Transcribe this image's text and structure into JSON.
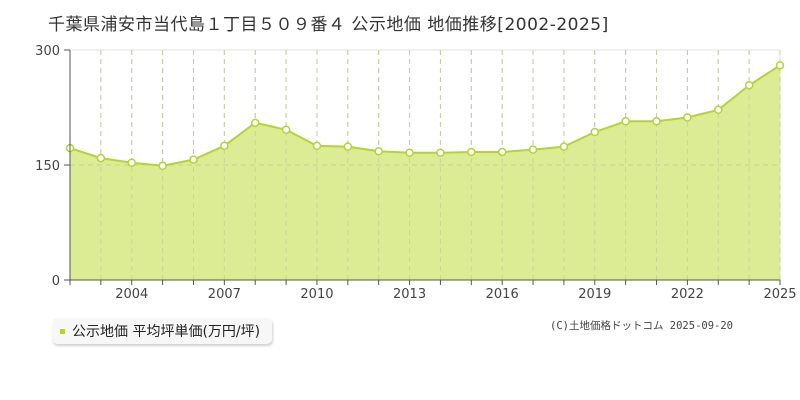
{
  "title": "千葉県浦安市当代島１丁目５０９番４ 公示地価 地価推移[2002-2025]",
  "legend": {
    "label": "公示地価 平均坪単価(万円/坪)",
    "color": "#b5d334"
  },
  "credit": "(C)土地価格ドットコム 2025-09-20",
  "colors": {
    "fill": "#dcec94",
    "line": "#b5d334",
    "grid": "#c8c8c8",
    "axis": "#555555"
  },
  "chart_data": {
    "type": "area",
    "title": "千葉県浦安市当代島１丁目５０９番４ 公示地価 地価推移[2002-2025]",
    "xlabel": "",
    "ylabel": "",
    "ylim": [
      0,
      300
    ],
    "xlim": [
      2002,
      2025
    ],
    "yticks": [
      0,
      150,
      300
    ],
    "xticks": [
      2004,
      2007,
      2010,
      2013,
      2016,
      2019,
      2022,
      2025
    ],
    "grid": true,
    "legend_position": "bottom-left",
    "x": [
      2002,
      2003,
      2004,
      2005,
      2006,
      2007,
      2008,
      2009,
      2010,
      2011,
      2012,
      2013,
      2014,
      2015,
      2016,
      2017,
      2018,
      2019,
      2020,
      2021,
      2022,
      2023,
      2024,
      2025
    ],
    "series": [
      {
        "name": "公示地価 平均坪単価(万円/坪)",
        "values": [
          172,
          159,
          153,
          149,
          157,
          175,
          205,
          196,
          175,
          174,
          168,
          166,
          166,
          167,
          167,
          170,
          174,
          193,
          207,
          207,
          212,
          222,
          254,
          280
        ]
      }
    ]
  }
}
